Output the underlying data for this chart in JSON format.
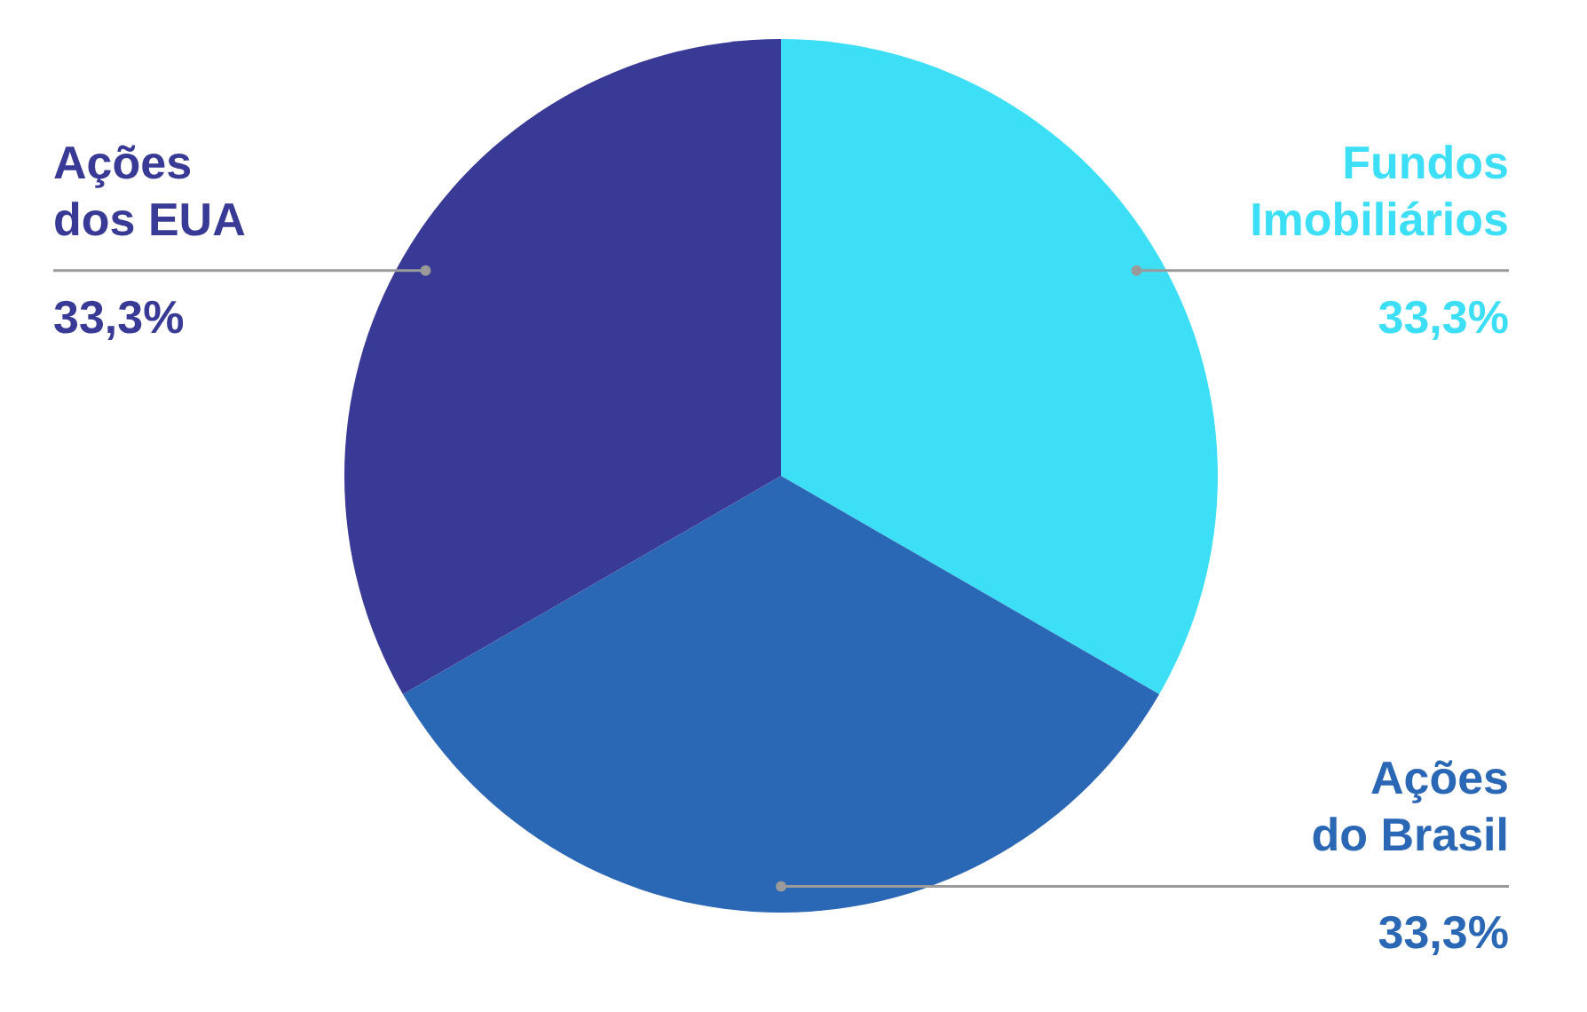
{
  "chart_data": {
    "type": "pie",
    "categories": [
      "Fundos Imobiliários",
      "Ações do Brasil",
      "Ações dos EUA"
    ],
    "values": [
      33.3,
      33.3,
      33.3
    ],
    "value_labels": [
      "33,3%",
      "33,3%",
      "33,3%"
    ],
    "colors": [
      "#3ddff7",
      "#2a67b5",
      "#393a95"
    ]
  }
}
